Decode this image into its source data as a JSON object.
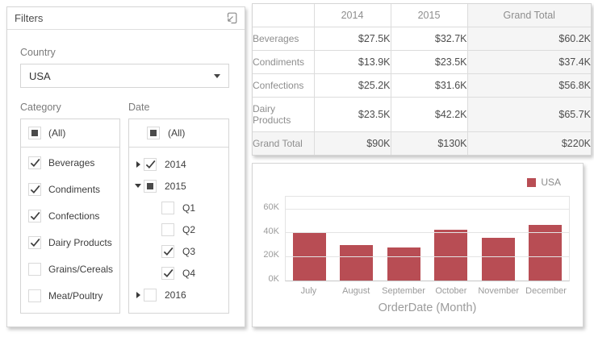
{
  "filters_panel": {
    "title": "Filters",
    "header_icon": "export-document-icon",
    "country": {
      "label": "Country",
      "selected": "USA"
    },
    "category": {
      "label": "Category",
      "all_item": {
        "label": "(All)",
        "state": "indeterminate"
      },
      "items": [
        {
          "label": "Beverages",
          "checked": true
        },
        {
          "label": "Condiments",
          "checked": true
        },
        {
          "label": "Confections",
          "checked": true
        },
        {
          "label": "Dairy Products",
          "checked": true
        },
        {
          "label": "Grains/Cereals",
          "checked": false
        },
        {
          "label": "Meat/Poultry",
          "checked": false
        }
      ]
    },
    "date": {
      "label": "Date",
      "all_item": {
        "label": "(All)",
        "state": "indeterminate"
      },
      "items": [
        {
          "label": "2014",
          "state": "checked",
          "expander": "collapsed",
          "level": 0
        },
        {
          "label": "2015",
          "state": "indeterminate",
          "expander": "expanded",
          "level": 0
        },
        {
          "label": "Q1",
          "state": "unchecked",
          "expander": null,
          "level": 1
        },
        {
          "label": "Q2",
          "state": "unchecked",
          "expander": null,
          "level": 1
        },
        {
          "label": "Q3",
          "state": "checked",
          "expander": null,
          "level": 1
        },
        {
          "label": "Q4",
          "state": "checked",
          "expander": null,
          "level": 1
        },
        {
          "label": "2016",
          "state": "unchecked",
          "expander": "collapsed",
          "level": 0
        }
      ]
    }
  },
  "pivot_table": {
    "columns": [
      "",
      "2014",
      "2015",
      "Grand Total"
    ],
    "rows": [
      {
        "label": "Beverages",
        "values": [
          "$27.5K",
          "$32.7K",
          "$60.2K"
        ],
        "is_total": false
      },
      {
        "label": "Condiments",
        "values": [
          "$13.9K",
          "$23.5K",
          "$37.4K"
        ],
        "is_total": false
      },
      {
        "label": "Confections",
        "values": [
          "$25.2K",
          "$31.6K",
          "$56.8K"
        ],
        "is_total": false
      },
      {
        "label": "Dairy Products",
        "values": [
          "$23.5K",
          "$42.2K",
          "$65.7K"
        ],
        "is_total": false
      },
      {
        "label": "Grand Total",
        "values": [
          "$90K",
          "$130K",
          "$220K"
        ],
        "is_total": true
      }
    ]
  },
  "chart_data": {
    "type": "bar",
    "categories": [
      "July",
      "August",
      "September",
      "October",
      "November",
      "December"
    ],
    "series": [
      {
        "name": "USA",
        "color": "#b84d54",
        "values": [
          40000,
          30000,
          28000,
          43000,
          36000,
          47000
        ]
      }
    ],
    "xlabel": "OrderDate (Month)",
    "ylabel": "",
    "yticks": [
      0,
      20000,
      40000,
      60000
    ],
    "ytick_labels": [
      "0K",
      "20K",
      "40K",
      "60K"
    ],
    "ylim": [
      0,
      70500
    ],
    "grid": true,
    "legend_position": "top-right"
  },
  "colors": {
    "bar_accent": "#b84d54",
    "panel_border": "#d5d5d5",
    "muted_text": "#8e8e8e",
    "grand_total_bg": "#f5f5f5"
  }
}
